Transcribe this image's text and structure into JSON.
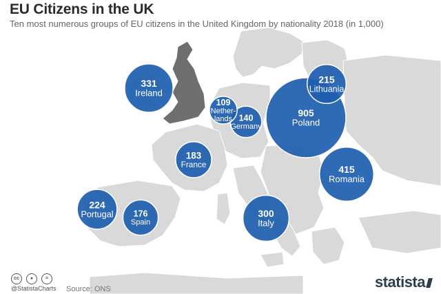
{
  "header": {
    "title": "EU Citizens in the UK",
    "subtitle": "Ten most numerous groups of EU citizens in the United Kingdom by nationality 2018 (in 1,000)"
  },
  "chart_data": {
    "type": "bubble-map",
    "unit": "1,000",
    "points": [
      {
        "name": "Ireland",
        "label_lines": [
          "Ireland"
        ],
        "value": 331,
        "value_label": "331"
      },
      {
        "name": "Netherlands",
        "label_lines": [
          "Nether-",
          "lands"
        ],
        "value": 109,
        "value_label": "109"
      },
      {
        "name": "Germany",
        "label_lines": [
          "Germany"
        ],
        "value": 140,
        "value_label": "140"
      },
      {
        "name": "Lithuania",
        "label_lines": [
          "Lithuania"
        ],
        "value": 215,
        "value_label": "215"
      },
      {
        "name": "Poland",
        "label_lines": [
          "Poland"
        ],
        "value": 905,
        "value_label": "905"
      },
      {
        "name": "France",
        "label_lines": [
          "France"
        ],
        "value": 183,
        "value_label": "183"
      },
      {
        "name": "Romania",
        "label_lines": [
          "Romania"
        ],
        "value": 415,
        "value_label": "415"
      },
      {
        "name": "Portugal",
        "label_lines": [
          "Portugal"
        ],
        "value": 224,
        "value_label": "224"
      },
      {
        "name": "Spain",
        "label_lines": [
          "Spain"
        ],
        "value": 176,
        "value_label": "176"
      },
      {
        "name": "Italy",
        "label_lines": [
          "Italy"
        ],
        "value": 300,
        "value_label": "300"
      }
    ]
  },
  "colors": {
    "bubble": "#1f5fae",
    "bubble_stroke": "#ffffff",
    "land": "#d9d9d9",
    "uk": "#6f6f6f",
    "text": "#ffffff"
  },
  "footer": {
    "license_icons": [
      "cc-icon",
      "by-icon",
      "nd-icon"
    ],
    "handle": "@StatistaCharts",
    "source": "Source: ONS",
    "brand": "statista"
  }
}
